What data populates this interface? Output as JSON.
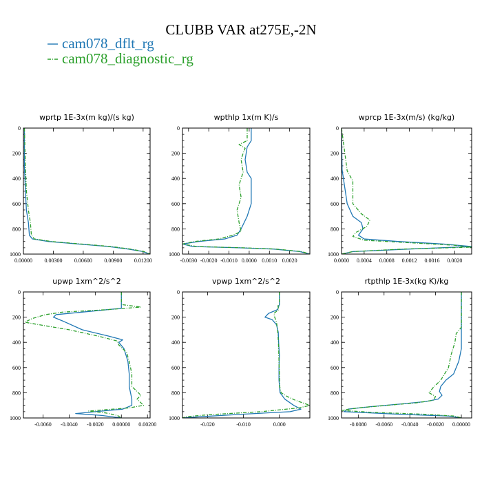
{
  "title": "CLUBB VAR at275E,-2N",
  "legend": [
    {
      "label": "cam078_dflt_rg",
      "color": "#1f77b4"
    },
    {
      "label": "cam078_diagnostic_rg",
      "color": "#2ca02c"
    }
  ],
  "chart_data": [
    {
      "type": "line",
      "title": "wprtp  1E-3x(m kg)/(s kg)",
      "xlim": [
        0,
        0.0127
      ],
      "ylim": [
        1000,
        0
      ],
      "xticks": [
        0,
        0.003,
        0.006,
        0.009,
        0.012
      ],
      "xtick_labels": [
        "0.00000",
        "0.00300",
        "0.00600",
        "0.00900",
        "0.01200"
      ],
      "yticks": [
        0,
        200,
        400,
        600,
        800,
        1000
      ],
      "series": [
        {
          "name": "cam078_dflt_rg",
          "y": [
            0,
            300,
            500,
            650,
            750,
            850,
            880,
            900,
            920,
            940,
            960,
            980,
            1000
          ],
          "x": [
            0.0001,
            0.0001,
            0.0002,
            0.0003,
            0.0005,
            0.0006,
            0.0009,
            0.0025,
            0.0055,
            0.0085,
            0.0105,
            0.012,
            0.0126
          ]
        },
        {
          "name": "cam078_diagnostic_rg",
          "y": [
            0,
            300,
            500,
            650,
            750,
            850,
            880,
            900,
            920,
            940,
            960,
            980,
            1000
          ],
          "x": [
            0.0001,
            0.0002,
            0.0003,
            0.0005,
            0.0007,
            0.0008,
            0.0011,
            0.0028,
            0.0058,
            0.0088,
            0.0107,
            0.0121,
            0.0127
          ]
        }
      ]
    },
    {
      "type": "line",
      "title": "wpthlp  1x(m K)/s",
      "xlim": [
        -0.0033,
        0.003
      ],
      "ylim": [
        1000,
        0
      ],
      "xticks": [
        -0.003,
        -0.002,
        -0.001,
        0,
        0.001,
        0.002
      ],
      "xtick_labels": [
        "-0.0030",
        "-0.0020",
        "-0.0010",
        "0.0000",
        "0.0010",
        "0.0020"
      ],
      "yticks": [
        0,
        200,
        400,
        600,
        800,
        1000
      ],
      "series": [
        {
          "name": "cam078_dflt_rg",
          "y": [
            0,
            100,
            150,
            250,
            350,
            400,
            500,
            600,
            700,
            800,
            850,
            880,
            900,
            920,
            940,
            950,
            960,
            980,
            1000
          ],
          "x": [
            0.0001,
            0.0001,
            -0.0001,
            -0.0002,
            -0.0001,
            0.0001,
            0.0001,
            0.0001,
            -0.0001,
            -0.0004,
            -0.0006,
            -0.0012,
            -0.0025,
            -0.0033,
            -0.0028,
            -0.0005,
            0.0012,
            0.0025,
            0.003
          ]
        },
        {
          "name": "cam078_diagnostic_rg",
          "y": [
            0,
            100,
            130,
            160,
            200,
            250,
            350,
            450,
            550,
            650,
            750,
            820,
            850,
            880,
            900,
            920,
            940,
            950,
            960,
            980,
            1000
          ],
          "x": [
            -0.0001,
            -0.0001,
            -0.0005,
            -0.0002,
            -0.0003,
            -0.0004,
            -0.0003,
            -0.0005,
            -0.0004,
            -0.0006,
            -0.0005,
            -0.0004,
            -0.0008,
            -0.0015,
            -0.0027,
            -0.0033,
            -0.0026,
            -0.0003,
            0.0013,
            0.0026,
            0.003
          ]
        }
      ]
    },
    {
      "type": "line",
      "title": "wprcp  1E-3x(m/s) (kg/kg)",
      "xlim": [
        0,
        0.0023
      ],
      "ylim": [
        1000,
        0
      ],
      "xticks": [
        0,
        0.0004,
        0.0008,
        0.0012,
        0.0016,
        0.002
      ],
      "xtick_labels": [
        "0.0000",
        "0.0004",
        "0.0008",
        "0.0012",
        "0.0016",
        "0.0020"
      ],
      "yticks": [
        0,
        200,
        400,
        600,
        800,
        1000
      ],
      "series": [
        {
          "name": "cam078_dflt_rg",
          "y": [
            0,
            330,
            450,
            600,
            700,
            750,
            800,
            850,
            880,
            900,
            920,
            940,
            960,
            980,
            1000
          ],
          "x": [
            0,
            1e-05,
            5e-05,
            0.0001,
            0.0002,
            0.00035,
            0.00038,
            0.0003,
            0.0004,
            0.001,
            0.0018,
            0.0023,
            0.0012,
            0.0002,
            0
          ],
          "note": ""
        },
        {
          "name": "cam078_diagnostic_rg",
          "y": [
            0,
            340,
            420,
            500,
            600,
            680,
            730,
            780,
            830,
            860,
            890,
            910,
            930,
            945,
            960,
            980,
            1000
          ],
          "x": [
            0,
            0.0001,
            0.0002,
            0.0002,
            0.0002,
            0.00035,
            0.0005,
            0.00045,
            0.00025,
            0.0002,
            0.0004,
            0.0012,
            0.002,
            0.0023,
            0.0011,
            0.0002,
            0
          ]
        }
      ]
    },
    {
      "type": "line",
      "title": "upwp  1xm^2/s^2",
      "xlim": [
        -0.0075,
        0.0022
      ],
      "ylim": [
        1000,
        0
      ],
      "xticks": [
        -0.006,
        -0.004,
        -0.002,
        0,
        0.002
      ],
      "xtick_labels": [
        "-0.0060",
        "-0.0040",
        "-0.0020",
        "0.00000",
        "0.00200"
      ],
      "yticks": [
        0,
        200,
        400,
        600,
        800,
        1000
      ],
      "series": [
        {
          "name": "cam078_dflt_rg",
          "y": [
            0,
            100,
            130,
            150,
            180,
            200,
            230,
            300,
            350,
            380,
            400,
            450,
            550,
            650,
            750,
            850,
            900,
            930,
            950,
            965,
            980,
            1000
          ],
          "x": [
            0,
            0,
            0,
            -0.002,
            -0.005,
            -0.0052,
            -0.0045,
            -0.003,
            -0.001,
            0.0001,
            -0.0002,
            0.0002,
            0.0005,
            0.0006,
            0.0006,
            0.0008,
            0.0008,
            0.0001,
            -0.002,
            -0.0035,
            -0.0015,
            0
          ]
        },
        {
          "name": "cam078_diagnostic_rg",
          "y": [
            0,
            100,
            120,
            140,
            160,
            180,
            210,
            240,
            260,
            300,
            350,
            390,
            420,
            480,
            550,
            650,
            750,
            820,
            850,
            900,
            920,
            945,
            960,
            980,
            1000
          ],
          "x": [
            0,
            0,
            0.0015,
            -0.001,
            -0.0045,
            -0.0058,
            -0.0068,
            -0.0074,
            -0.0063,
            -0.004,
            -0.0018,
            -0.0003,
            -0.0002,
            0.0004,
            0.0006,
            0.0008,
            0.0008,
            0.0015,
            0.0012,
            0.0017,
            0.0006,
            -0.0025,
            -0.0012,
            -0.0003,
            0
          ]
        }
      ]
    },
    {
      "type": "line",
      "title": "vpwp  1xm^2/s^2",
      "xlim": [
        -0.027,
        0.0085
      ],
      "ylim": [
        1000,
        0
      ],
      "xticks": [
        -0.02,
        -0.01,
        0
      ],
      "xtick_labels": [
        "-0.020",
        "-0.010",
        "0.000"
      ],
      "yticks": [
        0,
        200,
        400,
        600,
        800,
        1000
      ],
      "series": [
        {
          "name": "cam078_dflt_rg",
          "y": [
            0,
            100,
            140,
            170,
            200,
            220,
            260,
            320,
            400,
            500,
            600,
            700,
            800,
            850,
            900,
            930,
            950,
            970,
            990,
            1000
          ],
          "x": [
            0,
            0,
            -0.0005,
            -0.003,
            -0.004,
            -0.002,
            -0.0008,
            -0.0003,
            -0.0002,
            0,
            -0.0001,
            -0.0001,
            0.0002,
            0.0015,
            0.004,
            0.006,
            0.003,
            -0.01,
            -0.022,
            -0.027
          ]
        },
        {
          "name": "cam078_diagnostic_rg",
          "y": [
            0,
            100,
            110,
            140,
            170,
            200,
            240,
            300,
            380,
            450,
            550,
            650,
            750,
            800,
            830,
            860,
            900,
            920,
            950,
            975,
            990,
            1000
          ],
          "x": [
            0,
            0,
            -0.0004,
            -0.0002,
            -0.0015,
            -0.0013,
            -0.0008,
            -0.0005,
            -0.0003,
            -0.0002,
            -0.0001,
            0,
            0.0001,
            0.0005,
            0.0022,
            0.0045,
            0.0085,
            0.0055,
            -0.005,
            -0.02,
            -0.026,
            -0.027
          ]
        }
      ]
    },
    {
      "type": "line",
      "title": "rtpthlp  1E-3x(kg K)/kg",
      "xlim": [
        -0.0093,
        0.0008
      ],
      "ylim": [
        1000,
        0
      ],
      "xticks": [
        -0.008,
        -0.006,
        -0.004,
        -0.002,
        0
      ],
      "xtick_labels": [
        "-0.0080",
        "-0.0060",
        "-0.0040",
        "-0.0020",
        "0.00000"
      ],
      "yticks": [
        0,
        200,
        400,
        600,
        800,
        1000
      ],
      "series": [
        {
          "name": "cam078_dflt_rg",
          "y": [
            0,
            300,
            450,
            550,
            650,
            700,
            750,
            790,
            820,
            850,
            870,
            890,
            910,
            930,
            950,
            970,
            985,
            1000
          ],
          "x": [
            0,
            0,
            0,
            -0.0002,
            -0.0006,
            -0.0012,
            -0.0016,
            -0.0017,
            -0.0015,
            -0.0018,
            -0.0028,
            -0.0048,
            -0.007,
            -0.0088,
            -0.0091,
            -0.005,
            -0.001,
            0
          ]
        },
        {
          "name": "cam078_diagnostic_rg",
          "y": [
            0,
            280,
            330,
            400,
            500,
            600,
            700,
            760,
            800,
            830,
            860,
            880,
            900,
            920,
            940,
            955,
            970,
            985,
            1000
          ],
          "x": [
            0,
            0,
            -0.0004,
            -0.0005,
            -0.0008,
            -0.001,
            -0.0016,
            -0.0022,
            -0.0025,
            -0.002,
            -0.0022,
            -0.0035,
            -0.0058,
            -0.008,
            -0.0093,
            -0.007,
            -0.003,
            -0.0005,
            0
          ]
        }
      ]
    }
  ]
}
